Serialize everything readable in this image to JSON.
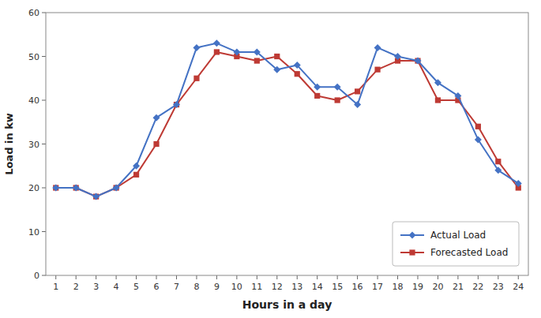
{
  "chart_data": {
    "type": "line",
    "xlabel": "Hours in a day",
    "ylabel": "Load in kw",
    "x": [
      1,
      2,
      3,
      4,
      5,
      6,
      7,
      8,
      9,
      10,
      11,
      12,
      13,
      14,
      15,
      16,
      17,
      18,
      19,
      20,
      21,
      22,
      23,
      24
    ],
    "series": [
      {
        "name": "Actual Load",
        "color": "#4472C4",
        "marker": "diamond",
        "values": [
          20,
          20,
          18,
          20,
          25,
          36,
          39,
          52,
          53,
          51,
          51,
          47,
          48,
          43,
          43,
          39,
          52,
          50,
          49,
          44,
          41,
          31,
          24,
          21
        ]
      },
      {
        "name": "Forecasted Load",
        "color": "#BE3A34",
        "marker": "square",
        "values": [
          20,
          20,
          18,
          20,
          23,
          30,
          39,
          45,
          51,
          50,
          49,
          50,
          46,
          41,
          40,
          42,
          47,
          49,
          49,
          40,
          40,
          34,
          26,
          20
        ]
      }
    ],
    "xlim": [
      0.5,
      24.5
    ],
    "ylim": [
      0,
      60
    ],
    "xticks": [
      1,
      2,
      3,
      4,
      5,
      6,
      7,
      8,
      9,
      10,
      11,
      12,
      13,
      14,
      15,
      16,
      17,
      18,
      19,
      20,
      21,
      22,
      23,
      24
    ],
    "yticks": [
      0,
      10,
      20,
      30,
      40,
      50,
      60
    ],
    "grid": false,
    "legend": "lower right"
  }
}
